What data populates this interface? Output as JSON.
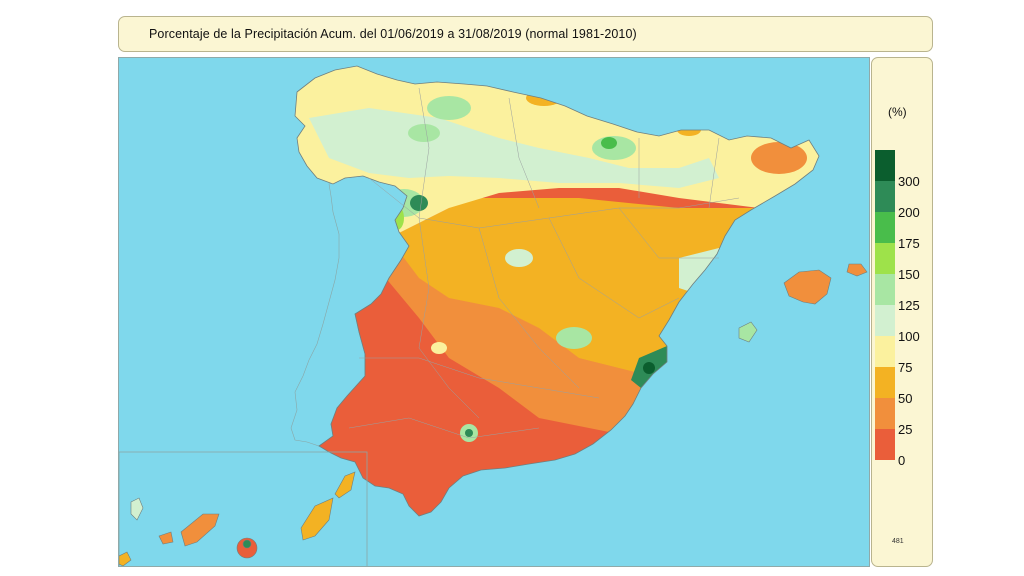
{
  "title": "Porcentaje de la Precipitación Acum. del 01/06/2019 a  31/08/2019  (normal 1981-2010)",
  "legend": {
    "unit": "(%)",
    "classes": [
      {
        "label": "300",
        "color": "#0b5e2e"
      },
      {
        "label": "200",
        "color": "#2e8b57"
      },
      {
        "label": "175",
        "color": "#49bd4b"
      },
      {
        "label": "150",
        "color": "#9ee24a"
      },
      {
        "label": "125",
        "color": "#a8e6a3"
      },
      {
        "label": "100",
        "color": "#d2f0d0"
      },
      {
        "label": "75",
        "color": "#fbf19e"
      },
      {
        "label": "50",
        "color": "#f3b223"
      },
      {
        "label": "25",
        "color": "#f18f3c"
      },
      {
        "label": "0",
        "color": "#ea5e3a"
      }
    ],
    "code": "481"
  },
  "colors": {
    "sea": "#7fd8ec",
    "panel": "#fbf6d3",
    "border": "#b9b48e"
  }
}
